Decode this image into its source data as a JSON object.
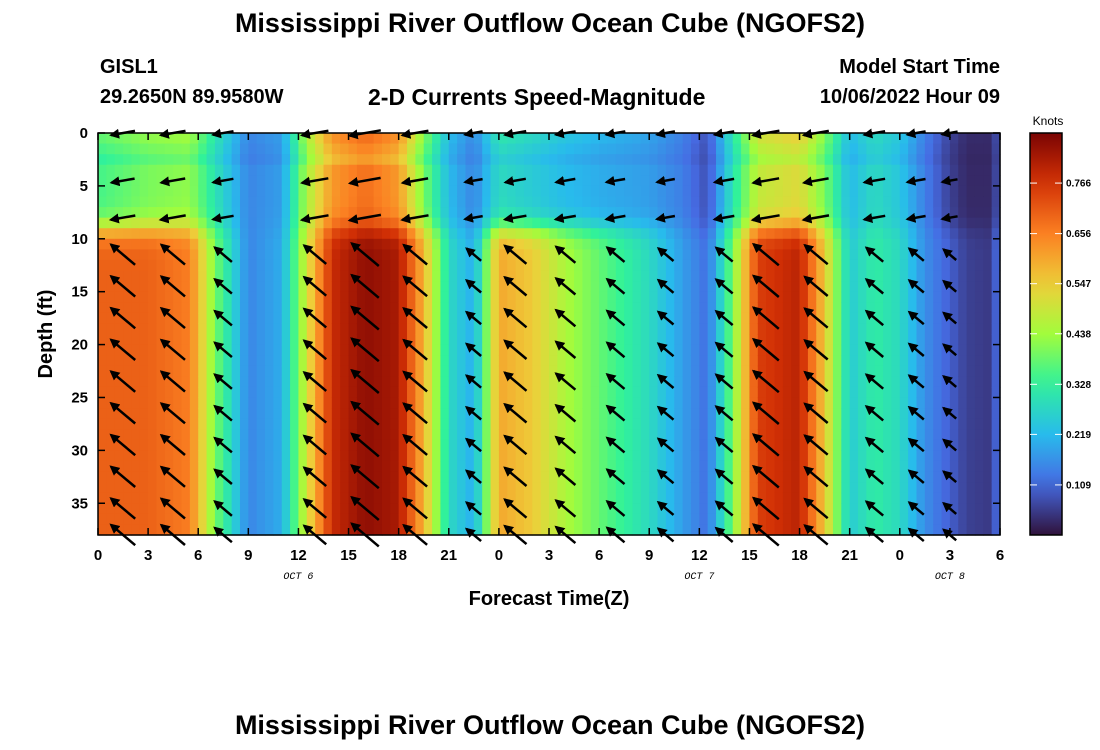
{
  "titles": {
    "main": "Mississippi River Outflow Ocean Cube (NGOFS2)",
    "bottom": "Mississippi River Outflow Ocean Cube (NGOFS2)"
  },
  "station": {
    "id": "GISL1",
    "coords": "29.2650N  89.9580W"
  },
  "model": {
    "label": "Model Start Time",
    "time": "10/06/2022 Hour 09"
  },
  "chart_data": {
    "type": "heatmap",
    "title": "2-D Currents Speed-Magnitude",
    "xlabel": "Forecast Time(Z)",
    "ylabel": "Depth (ft)",
    "x_range_hours": [
      0,
      54
    ],
    "y_range_ft": [
      0,
      38
    ],
    "x_tick_labels": [
      "0",
      "3",
      "6",
      "9",
      "12",
      "15",
      "18",
      "21",
      "0",
      "3",
      "6",
      "9",
      "12",
      "15",
      "18",
      "21",
      "0",
      "3",
      "6"
    ],
    "y_ticks": [
      0,
      5,
      10,
      15,
      20,
      25,
      30,
      35
    ],
    "date_labels": [
      {
        "text": "OCT 6",
        "hour": 12
      },
      {
        "text": "OCT 7",
        "hour": 36
      },
      {
        "text": "OCT 8",
        "hour": 51
      }
    ],
    "colorbar": {
      "title": "Knots",
      "range": [
        0,
        0.875
      ],
      "ticks": [
        0.109,
        0.219,
        0.328,
        0.438,
        0.547,
        0.656,
        0.766
      ],
      "tick_labels": [
        "0.109",
        "0.219",
        "0.328",
        "0.438",
        "0.547",
        "0.656",
        "0.766"
      ]
    },
    "speed_profile": {
      "hours": [
        0,
        3,
        5.5,
        7,
        9,
        11,
        12.5,
        14,
        16,
        18,
        19.5,
        21,
        22.5,
        24,
        26,
        28,
        30,
        33,
        35,
        36.5,
        38,
        39.5,
        42,
        43.5,
        45,
        46.5,
        48,
        49.5,
        51,
        52,
        53.5,
        54
      ],
      "deep": [
        0.7,
        0.7,
        0.66,
        0.4,
        0.15,
        0.2,
        0.5,
        0.78,
        0.85,
        0.82,
        0.58,
        0.28,
        0.2,
        0.6,
        0.55,
        0.45,
        0.38,
        0.28,
        0.18,
        0.12,
        0.4,
        0.75,
        0.8,
        0.55,
        0.25,
        0.32,
        0.28,
        0.16,
        0.1,
        0.06,
        0.05,
        0.15
      ],
      "surface": [
        0.35,
        0.4,
        0.42,
        0.3,
        0.15,
        0.18,
        0.45,
        0.62,
        0.68,
        0.62,
        0.4,
        0.22,
        0.15,
        0.28,
        0.25,
        0.22,
        0.2,
        0.18,
        0.14,
        0.08,
        0.3,
        0.48,
        0.52,
        0.4,
        0.22,
        0.28,
        0.24,
        0.14,
        0.06,
        0.03,
        0.03,
        0.1
      ],
      "layer_boundary_ft": 9
    },
    "vectors": {
      "hours": [
        1.5,
        4.5,
        7.5,
        13,
        16,
        19,
        22.5,
        25,
        28,
        31,
        34,
        37.5,
        40,
        43,
        46.5,
        49,
        51
      ],
      "depths_ft": [
        0,
        4.5,
        8,
        11.5,
        14.5,
        17.5,
        20.5,
        23.5,
        26.5,
        29.5,
        32.5,
        35.5,
        38
      ],
      "surface_direction_deg": 190,
      "deep_direction_deg": 140
    }
  }
}
